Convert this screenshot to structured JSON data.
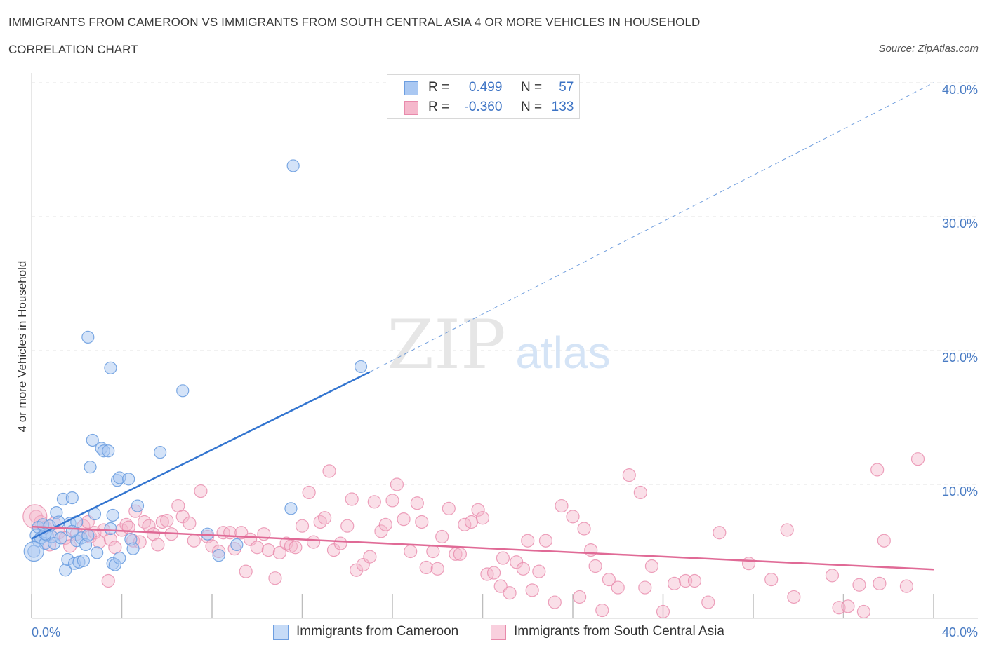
{
  "header": {
    "title": "IMMIGRANTS FROM CAMEROON VS IMMIGRANTS FROM SOUTH CENTRAL ASIA 4 OR MORE VEHICLES IN HOUSEHOLD",
    "subtitle": "CORRELATION CHART",
    "source": "Source: ZipAtlas.com"
  },
  "legend": {
    "rows": [
      {
        "r_label": "R =",
        "r_value": "0.499",
        "n_label": "N =",
        "n_value": "57"
      },
      {
        "r_label": "R =",
        "r_value": "-0.360",
        "n_label": "N =",
        "n_value": "133"
      }
    ]
  },
  "watermark": {
    "zip": "ZIP",
    "atlas": "atlas"
  },
  "colors": {
    "blue_fill": "#aac8f2",
    "blue_stroke": "#6d9ee0",
    "blue_line": "#3375d0",
    "pink_fill": "#f5b8cc",
    "pink_stroke": "#e88aab",
    "pink_line": "#e06a96",
    "tick_text": "#4a7cc4",
    "grid": "#e3e3e3"
  },
  "chart_data": {
    "type": "scatter",
    "title": "IMMIGRANTS FROM CAMEROON VS IMMIGRANTS FROM SOUTH CENTRAL ASIA 4 OR MORE VEHICLES IN HOUSEHOLD",
    "xlabel": "",
    "ylabel": "4 or more Vehicles in Household",
    "xlim": [
      0,
      40
    ],
    "ylim": [
      0,
      40
    ],
    "x_tick_labels": [
      "0.0%",
      "40.0%"
    ],
    "y_ticks": [
      10,
      20,
      30,
      40
    ],
    "y_tick_labels": [
      "10.0%",
      "20.0%",
      "30.0%",
      "40.0%"
    ],
    "grid": true,
    "legend_position": "top-center",
    "series": [
      {
        "name": "Immigrants from Cameroon",
        "R": 0.499,
        "N": 57,
        "trend": {
          "x0": 0,
          "y0": 5.95,
          "x1": 15,
          "y1": 18.4,
          "extended_to": [
            40,
            40.0
          ]
        },
        "points": [
          [
            0.1,
            5.0
          ],
          [
            0.2,
            6.2
          ],
          [
            0.3,
            5.8
          ],
          [
            0.3,
            6.8
          ],
          [
            0.4,
            6.0
          ],
          [
            0.5,
            7.0
          ],
          [
            0.6,
            5.6
          ],
          [
            0.7,
            6.2
          ],
          [
            0.8,
            6.9
          ],
          [
            0.9,
            6.1
          ],
          [
            1.0,
            5.6
          ],
          [
            1.1,
            7.9
          ],
          [
            1.2,
            7.2
          ],
          [
            1.3,
            6.0
          ],
          [
            1.4,
            8.9
          ],
          [
            1.5,
            3.6
          ],
          [
            1.6,
            4.4
          ],
          [
            1.7,
            7.1
          ],
          [
            1.8,
            9.0
          ],
          [
            1.9,
            4.1
          ],
          [
            2.0,
            5.8
          ],
          [
            2.0,
            7.2
          ],
          [
            2.1,
            4.2
          ],
          [
            2.2,
            6.0
          ],
          [
            2.3,
            4.3
          ],
          [
            2.4,
            5.5
          ],
          [
            2.5,
            6.2
          ],
          [
            2.6,
            11.3
          ],
          [
            2.7,
            13.3
          ],
          [
            2.8,
            7.8
          ],
          [
            2.9,
            4.9
          ],
          [
            2.5,
            21.0
          ],
          [
            3.1,
            12.7
          ],
          [
            3.2,
            12.5
          ],
          [
            3.4,
            12.5
          ],
          [
            3.5,
            6.7
          ],
          [
            3.6,
            4.1
          ],
          [
            3.7,
            4.0
          ],
          [
            3.5,
            18.7
          ],
          [
            3.6,
            7.7
          ],
          [
            3.8,
            10.3
          ],
          [
            3.9,
            4.5
          ],
          [
            3.9,
            10.5
          ],
          [
            4.3,
            10.4
          ],
          [
            4.4,
            5.9
          ],
          [
            4.5,
            5.2
          ],
          [
            4.7,
            8.4
          ],
          [
            5.7,
            12.4
          ],
          [
            6.7,
            17.0
          ],
          [
            7.8,
            6.3
          ],
          [
            8.3,
            4.7
          ],
          [
            9.1,
            5.5
          ],
          [
            11.5,
            8.2
          ],
          [
            11.6,
            33.8
          ],
          [
            14.6,
            18.8
          ],
          [
            0.6,
            6.3
          ],
          [
            1.8,
            6.5
          ]
        ]
      },
      {
        "name": "Immigrants from South Central Asia",
        "R": -0.36,
        "N": 133,
        "trend": {
          "x0": 0,
          "y0": 6.85,
          "x1": 40,
          "y1": 3.65
        },
        "points": [
          [
            0.2,
            7.6
          ],
          [
            0.4,
            7.2
          ],
          [
            0.6,
            6.8
          ],
          [
            0.8,
            5.5
          ],
          [
            1.0,
            7.1
          ],
          [
            1.2,
            6.4
          ],
          [
            1.5,
            6.0
          ],
          [
            1.7,
            5.4
          ],
          [
            2.0,
            6.3
          ],
          [
            2.3,
            6.9
          ],
          [
            2.5,
            7.2
          ],
          [
            2.6,
            6.1
          ],
          [
            2.8,
            6.4
          ],
          [
            3.0,
            5.7
          ],
          [
            3.2,
            6.6
          ],
          [
            3.5,
            5.9
          ],
          [
            3.4,
            2.8
          ],
          [
            3.7,
            5.3
          ],
          [
            4.0,
            6.6
          ],
          [
            4.2,
            7.0
          ],
          [
            4.3,
            6.8
          ],
          [
            4.5,
            5.8
          ],
          [
            4.6,
            8.0
          ],
          [
            4.8,
            5.7
          ],
          [
            5.0,
            7.2
          ],
          [
            5.2,
            6.9
          ],
          [
            5.4,
            6.3
          ],
          [
            5.6,
            5.5
          ],
          [
            5.8,
            7.2
          ],
          [
            6.0,
            7.3
          ],
          [
            6.2,
            6.3
          ],
          [
            6.5,
            8.4
          ],
          [
            6.7,
            7.6
          ],
          [
            7.0,
            7.1
          ],
          [
            7.2,
            5.8
          ],
          [
            7.5,
            9.5
          ],
          [
            7.8,
            6.1
          ],
          [
            8.0,
            5.4
          ],
          [
            8.3,
            5.0
          ],
          [
            8.5,
            6.4
          ],
          [
            8.8,
            6.4
          ],
          [
            9.0,
            5.2
          ],
          [
            9.3,
            6.4
          ],
          [
            9.5,
            3.5
          ],
          [
            9.7,
            5.9
          ],
          [
            10.0,
            5.3
          ],
          [
            10.3,
            6.3
          ],
          [
            10.5,
            5.1
          ],
          [
            10.8,
            3.0
          ],
          [
            11.0,
            4.9
          ],
          [
            11.3,
            5.6
          ],
          [
            11.5,
            5.4
          ],
          [
            11.7,
            5.3
          ],
          [
            12.0,
            6.9
          ],
          [
            12.3,
            9.4
          ],
          [
            12.5,
            5.7
          ],
          [
            12.8,
            7.2
          ],
          [
            13.0,
            7.5
          ],
          [
            13.2,
            11.0
          ],
          [
            13.4,
            5.1
          ],
          [
            13.7,
            5.6
          ],
          [
            14.0,
            6.9
          ],
          [
            14.2,
            8.9
          ],
          [
            14.4,
            3.6
          ],
          [
            14.7,
            4.0
          ],
          [
            15.0,
            4.6
          ],
          [
            15.2,
            8.7
          ],
          [
            15.5,
            6.5
          ],
          [
            15.7,
            7.0
          ],
          [
            16.0,
            8.8
          ],
          [
            16.2,
            10.0
          ],
          [
            16.5,
            7.4
          ],
          [
            16.8,
            5.0
          ],
          [
            17.1,
            8.6
          ],
          [
            17.3,
            7.2
          ],
          [
            17.5,
            3.8
          ],
          [
            17.8,
            5.0
          ],
          [
            18.0,
            3.7
          ],
          [
            18.2,
            6.1
          ],
          [
            18.5,
            8.2
          ],
          [
            18.8,
            4.8
          ],
          [
            19.0,
            4.8
          ],
          [
            19.2,
            7.0
          ],
          [
            19.5,
            7.2
          ],
          [
            19.8,
            8.1
          ],
          [
            20.0,
            7.5
          ],
          [
            20.2,
            3.3
          ],
          [
            20.5,
            3.4
          ],
          [
            20.8,
            2.4
          ],
          [
            20.9,
            4.5
          ],
          [
            21.2,
            1.9
          ],
          [
            21.5,
            4.2
          ],
          [
            21.8,
            3.7
          ],
          [
            22.0,
            5.8
          ],
          [
            22.2,
            2.1
          ],
          [
            22.5,
            3.5
          ],
          [
            22.8,
            5.8
          ],
          [
            23.2,
            1.2
          ],
          [
            23.5,
            8.4
          ],
          [
            24.0,
            7.6
          ],
          [
            24.3,
            1.6
          ],
          [
            24.5,
            6.7
          ],
          [
            24.8,
            5.1
          ],
          [
            25.0,
            3.9
          ],
          [
            25.3,
            0.6
          ],
          [
            25.6,
            2.9
          ],
          [
            26.0,
            2.3
          ],
          [
            26.5,
            10.7
          ],
          [
            27.0,
            9.4
          ],
          [
            27.2,
            2.3
          ],
          [
            27.5,
            3.9
          ],
          [
            28.0,
            0.5
          ],
          [
            28.5,
            2.6
          ],
          [
            29.0,
            2.8
          ],
          [
            29.4,
            2.8
          ],
          [
            30.0,
            1.2
          ],
          [
            30.5,
            6.4
          ],
          [
            31.8,
            4.1
          ],
          [
            32.8,
            2.9
          ],
          [
            33.5,
            6.6
          ],
          [
            33.8,
            1.6
          ],
          [
            35.5,
            3.2
          ],
          [
            35.8,
            0.8
          ],
          [
            36.2,
            0.9
          ],
          [
            36.7,
            2.5
          ],
          [
            36.9,
            0.5
          ],
          [
            37.5,
            11.1
          ],
          [
            37.6,
            2.6
          ],
          [
            37.8,
            5.8
          ],
          [
            38.8,
            2.4
          ],
          [
            39.3,
            11.9
          ]
        ]
      }
    ]
  },
  "bottom_legend": {
    "items": [
      {
        "label": "Immigrants from Cameroon"
      },
      {
        "label": "Immigrants from South Central Asia"
      }
    ]
  }
}
